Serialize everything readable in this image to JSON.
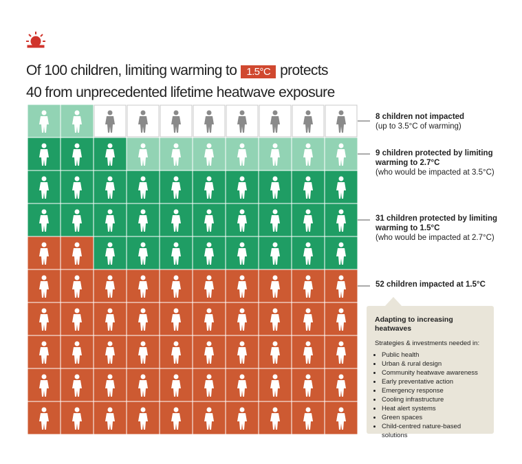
{
  "chart_data": {
    "type": "waffle",
    "title": [
      "Of 100 children, limiting warming to",
      "1.5°C",
      "protects",
      "40 from unprecedented lifetime heatwave exposure"
    ],
    "series": [
      {
        "name": "8 children not impacted",
        "note": "(up to 3.5°C of warming)",
        "color": "#ffffff",
        "values": [
          8
        ]
      },
      {
        "name": "9 children protected by limiting warming to 2.7°C",
        "note": "(who would be impacted at 3.5°C)",
        "color": "#92d3b4",
        "values": [
          9
        ]
      },
      {
        "name": "31 children protected by limiting warming to 1.5°C",
        "note": "(who would be impacted at 2.7°C)",
        "color": "#1f9d64",
        "values": [
          31
        ]
      },
      {
        "name": "52 children impacted at 1.5°C",
        "color": "#cd5a32",
        "values": [
          52
        ]
      }
    ],
    "panel": {
      "title": "Adapting to increasing heatwaves",
      "subtitle": "Strategies & investments needed in:",
      "items": [
        "Public health",
        "Urban & rural design",
        "Community heatwave awareness",
        "Early preventative action",
        "Emergency response",
        "Cooling infrastructure",
        "Heat alert systems",
        "Green spaces",
        "Child-centred nature-based solutions"
      ]
    }
  }
}
